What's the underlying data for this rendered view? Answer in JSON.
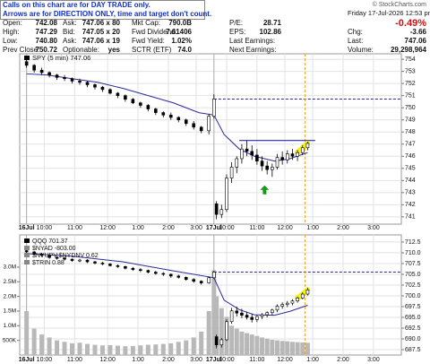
{
  "header": {
    "notice": [
      "Calls on this chart are for DAY TRADE only.",
      "Arrows are for DIRECTION ONLY, time and target don't count."
    ],
    "copyright": "© StockCharts.com",
    "datetime": "Friday  17-Jul-2026  12:53 pm"
  },
  "quote": {
    "rows": [
      [
        [
          "Open:",
          "742.08"
        ],
        [
          "Ask:",
          "747.06 x 80"
        ],
        [
          "Mkt Cap:",
          "790.0B"
        ],
        [
          "P/E:",
          "28.71"
        ]
      ],
      [
        [
          "High:",
          "747.29"
        ],
        [
          "Bid:",
          "747.05 x 20"
        ],
        [
          "Fwd Dividend:",
          "7.61406"
        ],
        [
          "EPS:",
          "102.86"
        ]
      ],
      [
        [
          "Low:",
          "740.80"
        ],
        [
          "Ask:",
          "747.06 x 19"
        ],
        [
          "Fwd Yield:",
          "1.02%"
        ],
        [
          "Last Earnings:"
        ]
      ],
      [
        [
          "Prev Close:",
          "750.72"
        ],
        [
          "Optionable:",
          "yes"
        ],
        [
          "SCTR (ETF)",
          "74.0"
        ],
        [
          "Next Earnings:"
        ]
      ]
    ],
    "change_pct": "-0.49%",
    "side": [
      [
        "Chg:",
        "-3.66"
      ],
      [
        "Last:",
        "747.06"
      ],
      [
        "Volume:",
        "29,298,964"
      ]
    ]
  },
  "chart_data": [
    {
      "type": "candlestick",
      "legend": "SPY (5 min) 747.06",
      "x": [
        2,
        5,
        8,
        11,
        14,
        17,
        20,
        23,
        26,
        29,
        32,
        35,
        38,
        41,
        44,
        47,
        50,
        53,
        56,
        59,
        62,
        65,
        68,
        71,
        74,
        76,
        77,
        79,
        81,
        83,
        85,
        87,
        89,
        91,
        93,
        95,
        97,
        99,
        101,
        103,
        105,
        107,
        109,
        111,
        113
      ],
      "ohlc": [
        [
          753.8,
          754.0,
          753.3,
          753.5
        ],
        [
          753.5,
          753.6,
          752.9,
          753.1
        ],
        [
          753.1,
          753.3,
          752.7,
          752.9
        ],
        [
          752.9,
          753.0,
          752.5,
          752.7
        ],
        [
          752.7,
          752.8,
          752.3,
          752.5
        ],
        [
          752.5,
          752.7,
          752.2,
          752.4
        ],
        [
          752.4,
          752.5,
          752.0,
          752.2
        ],
        [
          752.2,
          752.4,
          751.9,
          752.1
        ],
        [
          752.1,
          752.2,
          751.7,
          751.9
        ],
        [
          751.9,
          752.0,
          751.5,
          751.7
        ],
        [
          751.7,
          751.8,
          751.3,
          751.5
        ],
        [
          751.5,
          751.6,
          751.1,
          751.2
        ],
        [
          751.2,
          751.3,
          750.8,
          751.0
        ],
        [
          751.0,
          751.1,
          750.5,
          750.7
        ],
        [
          750.7,
          750.8,
          750.3,
          750.4
        ],
        [
          750.4,
          750.5,
          750.0,
          750.2
        ],
        [
          750.2,
          750.3,
          749.7,
          749.9
        ],
        [
          749.9,
          750.0,
          749.4,
          749.6
        ],
        [
          749.6,
          749.7,
          749.2,
          749.4
        ],
        [
          749.4,
          749.6,
          749.0,
          749.2
        ],
        [
          749.2,
          749.3,
          748.8,
          749.0
        ],
        [
          749.0,
          749.1,
          748.5,
          748.7
        ],
        [
          748.7,
          748.9,
          748.2,
          748.4
        ],
        [
          748.4,
          748.5,
          747.9,
          748.1
        ],
        [
          748.1,
          749.5,
          747.8,
          749.3
        ],
        [
          749.3,
          751.1,
          749.1,
          750.72
        ],
        [
          742.08,
          742.3,
          740.8,
          741.2
        ],
        [
          741.2,
          742.0,
          740.9,
          741.6
        ],
        [
          741.6,
          744.5,
          741.4,
          744.2
        ],
        [
          744.2,
          745.5,
          743.8,
          745.1
        ],
        [
          745.1,
          746.0,
          744.6,
          745.8
        ],
        [
          745.8,
          747.0,
          745.4,
          746.6
        ],
        [
          746.6,
          747.29,
          746.0,
          746.4
        ],
        [
          746.4,
          746.9,
          745.7,
          746.1
        ],
        [
          746.1,
          746.6,
          745.3,
          745.6
        ],
        [
          745.6,
          746.0,
          744.8,
          745.2
        ],
        [
          745.2,
          745.6,
          744.5,
          744.9
        ],
        [
          744.9,
          745.4,
          744.3,
          745.1
        ],
        [
          745.1,
          746.2,
          744.9,
          745.9
        ],
        [
          745.9,
          746.4,
          745.3,
          745.7
        ],
        [
          745.7,
          746.5,
          745.4,
          746.2
        ],
        [
          746.2,
          746.6,
          745.7,
          746.0
        ],
        [
          746.0,
          746.5,
          745.6,
          746.3
        ],
        [
          746.3,
          746.9,
          746.1,
          746.7
        ],
        [
          746.7,
          747.2,
          746.5,
          747.06
        ]
      ],
      "xlim": [
        0,
        150
      ],
      "ylim": [
        740.4,
        754.45
      ],
      "yticks": [
        741,
        742,
        743,
        744,
        745,
        746,
        747,
        748,
        749,
        750,
        751,
        752,
        753,
        754
      ],
      "xticks": [
        {
          "value": 2,
          "label": "16Jul"
        },
        {
          "value": 9,
          "label": "10:00"
        },
        {
          "value": 21,
          "label": "11:00"
        },
        {
          "value": 34,
          "label": "12:00"
        },
        {
          "value": 46,
          "label": "1:00"
        },
        {
          "value": 58,
          "label": "2:00"
        },
        {
          "value": 69,
          "label": "3:00"
        },
        {
          "value": 76,
          "label": "17Jul"
        },
        {
          "value": 81,
          "label": "10:00"
        },
        {
          "value": 93,
          "label": "11:00"
        },
        {
          "value": 104,
          "label": "12:00"
        },
        {
          "value": 115,
          "label": "1:00"
        },
        {
          "value": 127,
          "label": "2:00"
        },
        {
          "value": 139,
          "label": "3:00"
        }
      ],
      "grid": true,
      "ma": {
        "color": "#2a2a9a",
        "x": [
          2,
          10,
          20,
          30,
          40,
          50,
          60,
          70,
          76,
          80,
          86,
          92,
          100,
          106,
          113
        ],
        "values": [
          752.8,
          752.7,
          752.4,
          752.1,
          751.6,
          751.0,
          750.4,
          749.6,
          749.4,
          747.8,
          746.6,
          746.0,
          745.6,
          745.8,
          746.3
        ]
      },
      "prev_close_line": 750.72,
      "level": {
        "value": 747.3,
        "x": [
          86,
          116
        ]
      },
      "arrow": {
        "x": 96,
        "y": 743.6,
        "color": "#1a9a1a"
      },
      "now_x": 112
    },
    {
      "type": "candlestick",
      "legend": [
        "QQQ 701.37",
        "$NYAD -803.00",
        "$NYUPV:$NYDNV 0.62",
        "$TRIN 0.88"
      ],
      "x": [
        2,
        5,
        8,
        11,
        14,
        17,
        20,
        23,
        26,
        29,
        32,
        35,
        38,
        41,
        44,
        47,
        50,
        53,
        56,
        59,
        62,
        65,
        68,
        71,
        74,
        76,
        77,
        79,
        81,
        83,
        85,
        87,
        89,
        91,
        93,
        95,
        97,
        99,
        101,
        103,
        105,
        107,
        109,
        111,
        113
      ],
      "ohlc": [
        [
          710.5,
          711.0,
          709.8,
          710.2
        ],
        [
          710.2,
          710.4,
          709.4,
          709.7
        ],
        [
          709.7,
          710.0,
          709.0,
          709.4
        ],
        [
          709.4,
          709.6,
          708.6,
          708.9
        ],
        [
          708.9,
          709.2,
          708.4,
          708.8
        ],
        [
          708.8,
          709.0,
          708.2,
          708.5
        ],
        [
          708.5,
          708.7,
          707.9,
          708.2
        ],
        [
          708.2,
          708.6,
          707.8,
          708.3
        ],
        [
          708.3,
          708.5,
          707.6,
          707.9
        ],
        [
          707.9,
          708.1,
          707.3,
          707.6
        ],
        [
          707.6,
          707.9,
          707.1,
          707.4
        ],
        [
          707.4,
          707.6,
          706.8,
          707.0
        ],
        [
          707.0,
          707.3,
          706.5,
          706.8
        ],
        [
          706.8,
          707.0,
          706.1,
          706.4
        ],
        [
          706.4,
          706.7,
          705.8,
          706.1
        ],
        [
          706.1,
          706.4,
          705.5,
          705.9
        ],
        [
          705.9,
          706.1,
          705.2,
          705.5
        ],
        [
          705.5,
          705.8,
          704.9,
          705.2
        ],
        [
          705.2,
          705.5,
          704.6,
          705.0
        ],
        [
          705.0,
          705.2,
          704.2,
          704.6
        ],
        [
          704.6,
          704.9,
          704.0,
          704.3
        ],
        [
          704.3,
          704.5,
          703.5,
          703.8
        ],
        [
          703.8,
          704.1,
          703.0,
          703.4
        ],
        [
          703.4,
          703.6,
          702.6,
          703.0
        ],
        [
          703.0,
          704.5,
          702.8,
          704.2
        ],
        [
          704.2,
          705.8,
          703.9,
          705.5
        ],
        [
          690.5,
          691.0,
          687.8,
          688.6
        ],
        [
          688.6,
          690.2,
          688.0,
          689.8
        ],
        [
          689.8,
          694.5,
          689.5,
          694.0
        ],
        [
          694.0,
          697.2,
          693.5,
          696.5
        ],
        [
          696.5,
          697.5,
          695.2,
          696.0
        ],
        [
          696.0,
          697.0,
          694.8,
          695.5
        ],
        [
          695.5,
          696.3,
          694.5,
          695.0
        ],
        [
          695.0,
          695.8,
          693.8,
          694.5
        ],
        [
          694.5,
          695.5,
          693.9,
          695.2
        ],
        [
          695.2,
          696.0,
          694.6,
          695.6
        ],
        [
          695.6,
          696.4,
          695.0,
          696.1
        ],
        [
          696.1,
          697.0,
          695.5,
          696.7
        ],
        [
          696.7,
          698.0,
          696.2,
          697.6
        ],
        [
          697.6,
          698.5,
          697.0,
          698.0
        ],
        [
          698.0,
          698.8,
          697.4,
          698.3
        ],
        [
          698.3,
          699.2,
          697.8,
          698.8
        ],
        [
          698.8,
          699.8,
          698.4,
          699.5
        ],
        [
          699.5,
          700.8,
          699.2,
          700.4
        ],
        [
          700.4,
          701.9,
          700.1,
          701.37
        ]
      ],
      "volume": [
        1500000,
        900000,
        700000,
        600000,
        500000,
        450000,
        400000,
        420000,
        380000,
        350000,
        330000,
        340000,
        320000,
        300000,
        310000,
        330000,
        350000,
        360000,
        380000,
        400000,
        450000,
        500000,
        600000,
        800000,
        1500000,
        2900000,
        2000000,
        1600000,
        1300000,
        1000000,
        900000,
        800000,
        750000,
        700000,
        650000,
        600000,
        560000,
        520000,
        500000,
        480000,
        470000,
        450000,
        440000,
        430000,
        420000
      ],
      "volume_color": "#b8b8b8",
      "volume_lim": [
        0,
        4100000
      ],
      "volume_ticks": [
        {
          "value": 500000,
          "label": "500K"
        },
        {
          "value": 1000000,
          "label": "1.0M"
        },
        {
          "value": 1500000,
          "label": "1.5M"
        },
        {
          "value": 2000000,
          "label": "2.0M"
        },
        {
          "value": 2500000,
          "label": "2.5M"
        },
        {
          "value": 3000000,
          "label": "3.0M"
        }
      ],
      "xlim": [
        0,
        150
      ],
      "ylim": [
        686.25,
        714.15
      ],
      "yticks": [
        687.5,
        {
          "value": 690,
          "label": "690.0"
        },
        692.5,
        {
          "value": 695,
          "label": "695.0"
        },
        697.5,
        {
          "value": 700,
          "label": "700.0"
        },
        702.5,
        {
          "value": 705,
          "label": "705.0"
        },
        707.5,
        {
          "value": 710,
          "label": "710.0"
        },
        712.5
      ],
      "xticks": [
        {
          "value": 2,
          "label": "16Jul"
        },
        {
          "value": 9,
          "label": "10:00"
        },
        {
          "value": 21,
          "label": "11:00"
        },
        {
          "value": 34,
          "label": "12:00"
        },
        {
          "value": 46,
          "label": "1:00"
        },
        {
          "value": 58,
          "label": "2:00"
        },
        {
          "value": 69,
          "label": "3:00"
        },
        {
          "value": 76,
          "label": "17Jul"
        },
        {
          "value": 81,
          "label": "10:00"
        },
        {
          "value": 93,
          "label": "11:00"
        },
        {
          "value": 104,
          "label": "12:00"
        },
        {
          "value": 115,
          "label": "1:00"
        },
        {
          "value": 127,
          "label": "2:00"
        },
        {
          "value": 139,
          "label": "3:00"
        }
      ],
      "grid": true,
      "ma": {
        "color": "#2a2a9a",
        "x": [
          2,
          20,
          40,
          60,
          76,
          80,
          86,
          92,
          100,
          106,
          113
        ],
        "values": [
          709.8,
          709.2,
          707.9,
          705.8,
          704.2,
          699.0,
          696.8,
          695.6,
          695.5,
          696.4,
          697.8
        ]
      },
      "prev_close_line": 705.5,
      "now_x": 112
    }
  ]
}
